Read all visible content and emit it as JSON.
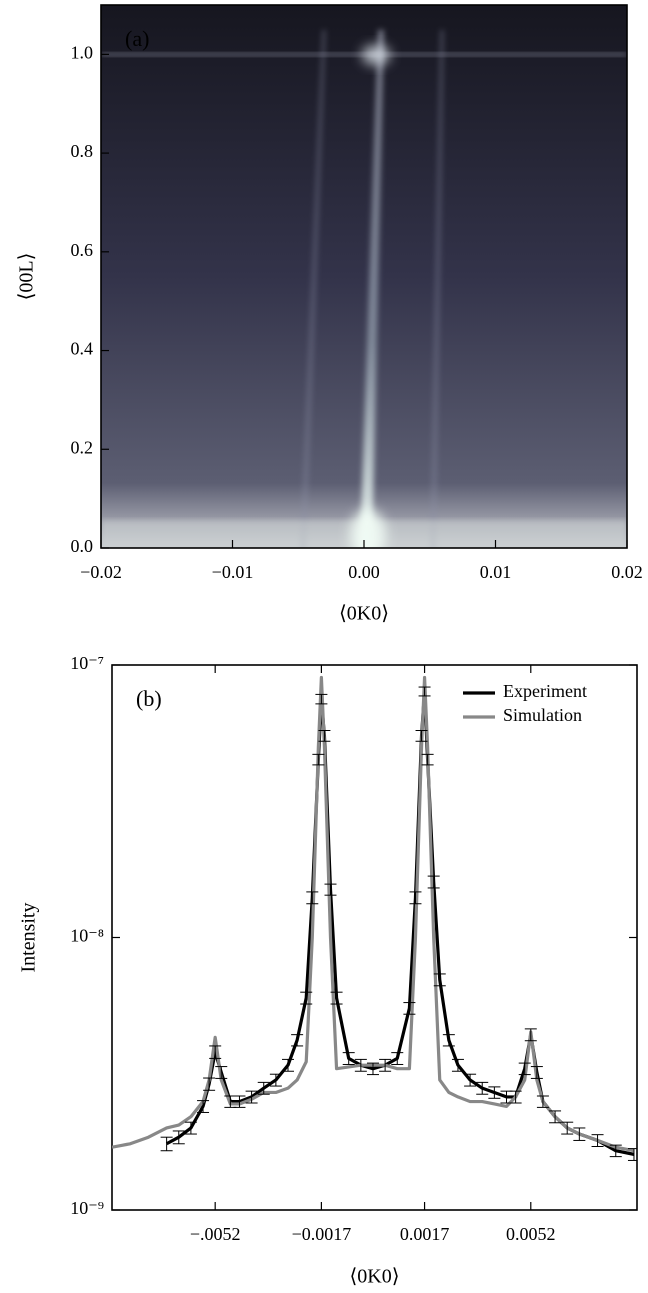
{
  "chart_data": [
    {
      "type": "image",
      "annotation": "(a)",
      "xlabel": "⟨0K0⟩",
      "ylabel": "⟨00L⟩",
      "xlim": [
        -0.02,
        0.02
      ],
      "ylim": [
        0,
        1.1
      ],
      "xticks": [
        {
          "value": -0.02,
          "label": "−0.02"
        },
        {
          "value": -0.01,
          "label": "−0.01"
        },
        {
          "value": 0,
          "label": "0.00"
        },
        0.01,
        0.02
      ],
      "yticks": [
        {
          "value": 0,
          "label": "0.0"
        },
        0.2,
        0.4,
        0.6,
        0.8,
        {
          "value": 1,
          "label": "1.0"
        }
      ]
    },
    {
      "type": "line",
      "annotation": "(b)",
      "xlabel": "⟨0K0⟩",
      "ylabel": "Intensity",
      "log_y": true,
      "legend": "upper right",
      "xlim": [
        -0.0086,
        0.0087
      ],
      "ylim": [
        1e-09,
        1e-07
      ],
      "xticks": [
        {
          "value": -0.0052,
          "label": "−.0052"
        },
        {
          "value": -0.0017,
          "label": "−0.0017"
        },
        0.0017,
        0.0052
      ],
      "yticks": [
        {
          "value": 1e-09,
          "label": "10⁻⁹"
        },
        {
          "value": 1e-08,
          "label": "10⁻⁸"
        },
        {
          "value": 1e-07,
          "label": "10⁻⁷"
        }
      ],
      "x": [
        -0.0086,
        -0.008,
        -0.0074,
        -0.0068,
        -0.0064,
        -0.006,
        -0.0056,
        -0.0054,
        -0.0052,
        -0.005,
        -0.0047,
        -0.0044,
        -0.004,
        -0.0036,
        -0.0032,
        -0.0028,
        -0.0025,
        -0.0022,
        -0.002,
        -0.0018,
        -0.0017,
        -0.0016,
        -0.0014,
        -0.0012,
        -0.0008,
        -0.0004,
        0,
        0.0004,
        0.0008,
        0.0012,
        0.0014,
        0.0016,
        0.0017,
        0.0018,
        0.002,
        0.0022,
        0.0025,
        0.0028,
        0.0032,
        0.0036,
        0.004,
        0.0044,
        0.0047,
        0.005,
        0.0052,
        0.0054,
        0.0056,
        0.006,
        0.0064,
        0.0068,
        0.0074,
        0.008,
        0.0086
      ],
      "series": [
        {
          "name": "Experiment",
          "color": "#000000",
          "values": [
            null,
            null,
            null,
            1.75e-09,
            1.85e-09,
            2e-09,
            2.4e-09,
            2.9e-09,
            3.8e-09,
            3.2e-09,
            2.5e-09,
            2.5e-09,
            2.6e-09,
            2.8e-09,
            3e-09,
            3.4e-09,
            4.2e-09,
            6e-09,
            1.4e-08,
            4.5e-08,
            7.5e-08,
            5.5e-08,
            1.5e-08,
            6e-09,
            3.6e-09,
            3.4e-09,
            3.3e-09,
            3.4e-09,
            3.6e-09,
            5.5e-09,
            1.4e-08,
            5.5e-08,
            8e-08,
            4.5e-08,
            1.6e-08,
            7e-09,
            4.2e-09,
            3.4e-09,
            3e-09,
            2.8e-09,
            2.7e-09,
            2.6e-09,
            2.6e-09,
            3.3e-09,
            4.4e-09,
            3.2e-09,
            2.5e-09,
            2.2e-09,
            2e-09,
            1.9e-09,
            1.8e-09,
            1.65e-09,
            1.6e-09
          ],
          "errors": [
            null,
            null,
            null,
            1e-10,
            1e-10,
            1e-10,
            1.2e-10,
            1.5e-10,
            2e-10,
            1.6e-10,
            1.2e-10,
            1.2e-10,
            1.3e-10,
            1.4e-10,
            1.5e-10,
            1.7e-10,
            2e-10,
            3e-10,
            7e-10,
            2e-09,
            3e-09,
            2.5e-09,
            7e-10,
            3e-10,
            1.8e-10,
            1.7e-10,
            1.6e-10,
            1.7e-10,
            1.8e-10,
            2.7e-10,
            7e-10,
            2.5e-09,
            3e-09,
            2e-09,
            8e-10,
            3.5e-10,
            2e-10,
            1.7e-10,
            1.5e-10,
            1.4e-10,
            1.3e-10,
            1.3e-10,
            1.3e-10,
            1.6e-10,
            2.2e-10,
            1.6e-10,
            1.2e-10,
            1.1e-10,
            1e-10,
            1e-10,
            9e-11,
            8e-11,
            8e-11
          ]
        },
        {
          "name": "Simulation",
          "color": "#888888",
          "values": [
            1.7e-09,
            1.75e-09,
            1.85e-09,
            2e-09,
            2.05e-09,
            2.2e-09,
            2.5e-09,
            3e-09,
            4.3e-09,
            3e-09,
            2.45e-09,
            2.45e-09,
            2.55e-09,
            2.7e-09,
            2.7e-09,
            2.8e-09,
            3e-09,
            3.5e-09,
            1e-08,
            5e-08,
            9e-08,
            5e-08,
            1e-08,
            3.3e-09,
            3.35e-09,
            3.4e-09,
            3.4e-09,
            3.4e-09,
            3.3e-09,
            3.3e-09,
            1e-08,
            5e-08,
            9e-08,
            5e-08,
            1e-08,
            3e-09,
            2.7e-09,
            2.6e-09,
            2.5e-09,
            2.5e-09,
            2.45e-09,
            2.4e-09,
            2.6e-09,
            3e-09,
            4.5e-09,
            3e-09,
            2.5e-09,
            2.2e-09,
            2e-09,
            1.9e-09,
            1.8e-09,
            1.7e-09,
            1.65e-09
          ]
        }
      ]
    }
  ]
}
